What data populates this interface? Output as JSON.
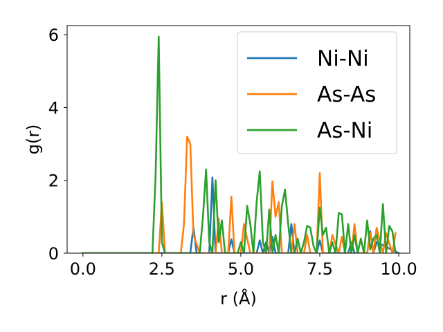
{
  "chart_data": {
    "type": "line",
    "xlabel": "r (Å)",
    "ylabel": "g(r)",
    "xlim": [
      -0.5,
      10.35
    ],
    "ylim": [
      0,
      6.25
    ],
    "xticks": [
      0.0,
      2.5,
      5.0,
      7.5,
      10.0
    ],
    "xtick_labels": [
      "0.0",
      "2.5",
      "5.0",
      "7.5",
      "10.0"
    ],
    "yticks": [
      0,
      2,
      4,
      6
    ],
    "ytick_labels": [
      "0",
      "2",
      "4",
      "6"
    ],
    "grid": false,
    "legend_position": "top-right",
    "series": [
      {
        "name": "Ni-Ni",
        "color": "#1f77b4",
        "x": [
          0.0,
          3.4,
          3.5,
          3.6,
          4.0,
          4.1,
          4.2,
          4.6,
          4.7,
          4.8,
          5.5,
          5.6,
          5.7,
          5.8,
          5.9,
          6.0,
          6.1,
          6.2,
          6.5,
          6.6,
          6.7,
          7.4,
          7.5,
          7.6,
          8.4,
          8.5,
          8.6,
          9.0,
          9.1,
          9.2,
          9.3,
          10.0
        ],
        "y": [
          0.0,
          0.0,
          0.72,
          0.0,
          0.0,
          2.08,
          0.0,
          0.0,
          0.38,
          0.0,
          0.0,
          0.35,
          0.0,
          0.3,
          0.0,
          0.45,
          0.0,
          0.0,
          0.0,
          0.8,
          0.0,
          0.0,
          0.35,
          0.0,
          0.0,
          0.3,
          0.0,
          0.0,
          0.6,
          0.0,
          0.3,
          0.0
        ]
      },
      {
        "name": "As-As",
        "color": "#ff7f0e",
        "x": [
          0.0,
          2.4,
          2.5,
          2.6,
          3.1,
          3.2,
          3.3,
          3.4,
          3.5,
          3.7,
          3.8,
          4.2,
          4.3,
          4.4,
          4.6,
          4.7,
          4.8,
          5.0,
          5.1,
          5.3,
          5.4,
          5.5,
          5.8,
          5.9,
          6.0,
          6.1,
          6.2,
          6.3,
          6.6,
          6.7,
          6.8,
          7.0,
          7.1,
          7.2,
          7.4,
          7.5,
          7.6,
          7.8,
          7.9,
          8.1,
          8.2,
          8.3,
          8.5,
          8.6,
          8.7,
          9.0,
          9.1,
          9.2,
          9.3,
          9.5,
          9.6,
          9.8,
          9.9
        ],
        "y": [
          0.0,
          0.0,
          1.4,
          0.0,
          0.0,
          0.8,
          3.2,
          3.0,
          0.5,
          0.0,
          0.0,
          0.0,
          0.95,
          0.0,
          0.0,
          1.55,
          0.0,
          0.0,
          0.8,
          0.0,
          0.0,
          0.0,
          0.0,
          0.0,
          1.97,
          1.0,
          1.4,
          0.0,
          0.0,
          0.8,
          0.0,
          0.0,
          0.5,
          0.0,
          0.0,
          2.2,
          0.0,
          0.0,
          0.5,
          0.0,
          0.45,
          0.0,
          0.0,
          0.8,
          0.0,
          0.0,
          0.55,
          0.0,
          0.7,
          0.0,
          0.55,
          0.0,
          0.55
        ]
      },
      {
        "name": "As-Ni",
        "color": "#2ca02c",
        "x": [
          0.0,
          2.2,
          2.3,
          2.4,
          2.5,
          2.6,
          3.7,
          3.8,
          3.9,
          4.0,
          4.1,
          4.2,
          4.3,
          4.4,
          4.5,
          4.9,
          5.0,
          5.1,
          5.2,
          5.3,
          5.4,
          5.5,
          5.6,
          5.7,
          5.8,
          5.9,
          6.0,
          6.1,
          6.2,
          6.3,
          6.4,
          6.5,
          6.6,
          6.7,
          6.8,
          6.9,
          7.0,
          7.1,
          7.2,
          7.3,
          7.4,
          7.5,
          7.6,
          7.7,
          7.8,
          7.9,
          8.0,
          8.1,
          8.2,
          8.3,
          8.4,
          8.5,
          8.6,
          8.7,
          8.8,
          8.9,
          9.0,
          9.1,
          9.2,
          9.3,
          9.4,
          9.5,
          9.6,
          9.7,
          9.8,
          9.9
        ],
        "y": [
          0.0,
          0.0,
          2.1,
          5.95,
          0.3,
          0.0,
          0.0,
          1.0,
          2.3,
          0.3,
          0.0,
          2.0,
          0.3,
          0.9,
          0.0,
          0.0,
          0.3,
          0.0,
          1.3,
          0.8,
          0.0,
          1.4,
          2.25,
          0.3,
          0.0,
          1.2,
          0.0,
          0.5,
          0.0,
          1.3,
          1.75,
          0.8,
          0.0,
          0.0,
          0.4,
          0.0,
          0.3,
          0.75,
          0.7,
          0.2,
          0.0,
          1.25,
          0.5,
          0.7,
          0.0,
          0.3,
          0.0,
          1.1,
          1.07,
          0.0,
          0.8,
          0.0,
          0.5,
          0.0,
          0.4,
          0.0,
          0.9,
          0.1,
          0.4,
          0.5,
          0.0,
          1.35,
          0.0,
          0.75,
          0.6,
          0.0
        ]
      }
    ]
  }
}
